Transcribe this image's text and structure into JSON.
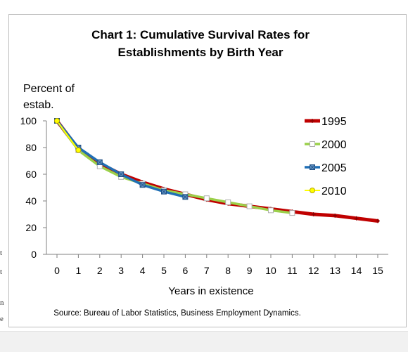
{
  "chart_data": {
    "type": "line",
    "title_lines": [
      "Chart 1: Cumulative Survival Rates for",
      "Establishments by Birth Year"
    ],
    "ylabel_lines": [
      "Percent of",
      "estab."
    ],
    "xlabel": "Years in existence",
    "source": "Source: Bureau of Labor Statistics, Business Employment Dynamics.",
    "xlim": [
      0,
      15
    ],
    "ylim": [
      0,
      100
    ],
    "yticks": [
      0,
      20,
      40,
      60,
      80,
      100
    ],
    "xticks": [
      0,
      1,
      2,
      3,
      4,
      5,
      6,
      7,
      8,
      9,
      10,
      11,
      12,
      13,
      14,
      15
    ],
    "grid": false,
    "legend": "right",
    "series": [
      {
        "name": "1995",
        "color": "#c00000",
        "marker": "plus",
        "x": [
          0,
          1,
          2,
          3,
          4,
          5,
          6,
          7,
          8,
          9,
          10,
          11,
          12,
          13,
          14,
          15
        ],
        "values": [
          100,
          79,
          68,
          60,
          54,
          49,
          45,
          41,
          38,
          36,
          34,
          32,
          30,
          29,
          27,
          25
        ]
      },
      {
        "name": "2000",
        "color": "#9bd04a",
        "marker": "square-open",
        "x": [
          0,
          1,
          2,
          3,
          4,
          5,
          6,
          7,
          8,
          9,
          10,
          11
        ],
        "values": [
          100,
          78,
          66,
          58,
          53,
          48,
          45,
          42,
          39,
          36,
          33,
          31
        ]
      },
      {
        "name": "2005",
        "color": "#1f6fb5",
        "marker": "square-x",
        "x": [
          0,
          1,
          2,
          3,
          4,
          5,
          6
        ],
        "values": [
          100,
          80,
          69,
          60,
          52,
          47,
          43
        ]
      },
      {
        "name": "2010",
        "color": "#ffff00",
        "marker": "circle",
        "x": [
          0,
          1
        ],
        "values": [
          100,
          78
        ]
      }
    ]
  },
  "edge_fragments": [
    "t",
    "t",
    "n",
    "e"
  ]
}
